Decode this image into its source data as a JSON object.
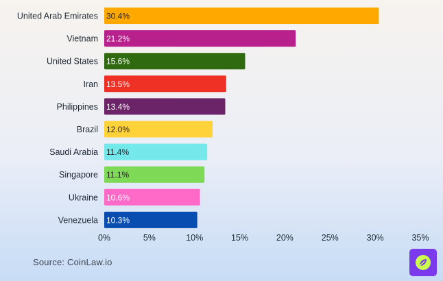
{
  "chart_data": {
    "type": "bar",
    "orientation": "horizontal",
    "categories": [
      "United Arab Emirates",
      "Vietnam",
      "United States",
      "Iran",
      "Philippines",
      "Brazil",
      "Saudi Arabia",
      "Singapore",
      "Ukraine",
      "Venezuela"
    ],
    "values": [
      30.4,
      21.2,
      15.6,
      13.5,
      13.4,
      12.0,
      11.4,
      11.1,
      10.6,
      10.3
    ],
    "value_labels": [
      "30.4%",
      "21.2%",
      "15.6%",
      "13.5%",
      "13.4%",
      "12.0%",
      "11.4%",
      "11.1%",
      "10.6%",
      "10.3%"
    ],
    "colors": [
      "#ffa800",
      "#b8218b",
      "#2f6a10",
      "#ee3124",
      "#6b2468",
      "#ffd23a",
      "#74e8ea",
      "#7ed957",
      "#ff69c8",
      "#0a4db0"
    ],
    "label_colors": [
      "#1f1f1f",
      "#ffffff",
      "#ffffff",
      "#ffffff",
      "#ffffff",
      "#1f1f1f",
      "#1f1f1f",
      "#1f1f1f",
      "#ffffff",
      "#ffffff"
    ],
    "xlim": [
      0,
      35
    ],
    "x_ticks": [
      0,
      5,
      10,
      15,
      20,
      25,
      30,
      35
    ],
    "x_tick_labels": [
      "0%",
      "5%",
      "10%",
      "15%",
      "20%",
      "25%",
      "30%",
      "35%"
    ],
    "title": "",
    "xlabel": "",
    "ylabel": "",
    "grid": false,
    "legend": "none"
  },
  "footer": {
    "source": "Source: CoinLaw.io"
  },
  "logo": {
    "icon": "leaf-icon",
    "color": "#7c3aed"
  }
}
